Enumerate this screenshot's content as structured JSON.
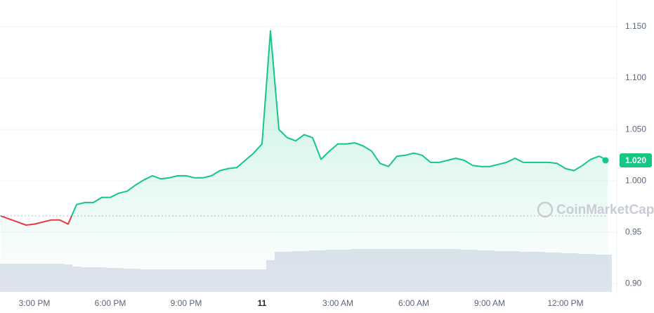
{
  "chart_data": {
    "type": "line",
    "categories": [
      null,
      null,
      "3:00 PM",
      null,
      null,
      null,
      null,
      null,
      null,
      null,
      null,
      "6:00 PM",
      null,
      null,
      null,
      null,
      null,
      null,
      null,
      null,
      "9:00 PM",
      null,
      null,
      null,
      null,
      null,
      null,
      null,
      null,
      "11",
      null,
      null,
      null,
      null,
      null,
      null,
      null,
      null,
      "3:00 AM",
      null,
      null,
      null,
      null,
      null,
      null,
      null,
      null,
      "6:00 AM",
      null,
      null,
      null,
      null,
      null,
      null,
      null,
      null,
      "9:00 AM",
      null,
      null,
      null,
      null,
      null,
      null,
      null,
      null,
      "12:00 PM",
      null,
      null,
      null,
      null,
      null,
      null,
      null
    ],
    "values": [
      0.966,
      0.963,
      0.96,
      0.957,
      0.958,
      0.96,
      0.962,
      0.962,
      0.958,
      0.977,
      0.979,
      0.979,
      0.984,
      0.984,
      0.988,
      0.99,
      0.996,
      1.001,
      1.005,
      1.002,
      1.003,
      1.005,
      1.005,
      1.003,
      1.003,
      1.005,
      1.01,
      1.012,
      1.013,
      1.02,
      1.027,
      1.036,
      1.146,
      1.05,
      1.042,
      1.039,
      1.045,
      1.042,
      1.021,
      1.029,
      1.036,
      1.036,
      1.037,
      1.034,
      1.029,
      1.017,
      1.014,
      1.024,
      1.025,
      1.027,
      1.025,
      1.018,
      1.018,
      1.02,
      1.022,
      1.02,
      1.015,
      1.014,
      1.014,
      1.016,
      1.018,
      1.022,
      1.018,
      1.018,
      1.018,
      1.018,
      1.017,
      1.012,
      1.01,
      1.015,
      1.021,
      1.024,
      1.02
    ],
    "volume": [
      40,
      40,
      40,
      40,
      40,
      40,
      40,
      40,
      39,
      36,
      35,
      35,
      35,
      34,
      34,
      33,
      33,
      32,
      32,
      32,
      32,
      32,
      32,
      32,
      32,
      32,
      32,
      32,
      32,
      32,
      32,
      32,
      45,
      57,
      57,
      58,
      58,
      59,
      59,
      60,
      60,
      60,
      61,
      61,
      61,
      61,
      61,
      61,
      61,
      61,
      61,
      61,
      61,
      61,
      61,
      60,
      60,
      59,
      59,
      58,
      58,
      58,
      57,
      57,
      57,
      56,
      56,
      55,
      55,
      54,
      54,
      53,
      53
    ],
    "volume_lim": [
      0,
      100
    ],
    "baseline": 0.966,
    "up_color": "#16c784",
    "down_color": "#ea3943",
    "volume_color": "#dfe3ee",
    "ylim": [
      0.892,
      1.176
    ],
    "yticks": [
      {
        "value": 1.15,
        "label": "1.150"
      },
      {
        "value": 1.1,
        "label": "1.100"
      },
      {
        "value": 1.05,
        "label": "1.050"
      },
      {
        "value": 1.0,
        "label": "1.000"
      },
      {
        "value": 0.95,
        "label": "0.95"
      },
      {
        "value": 0.9,
        "label": "0.90"
      }
    ],
    "grid": true,
    "price_tag": {
      "value": 1.02,
      "label": "1.020"
    },
    "watermark": "CoinMarketCap"
  }
}
